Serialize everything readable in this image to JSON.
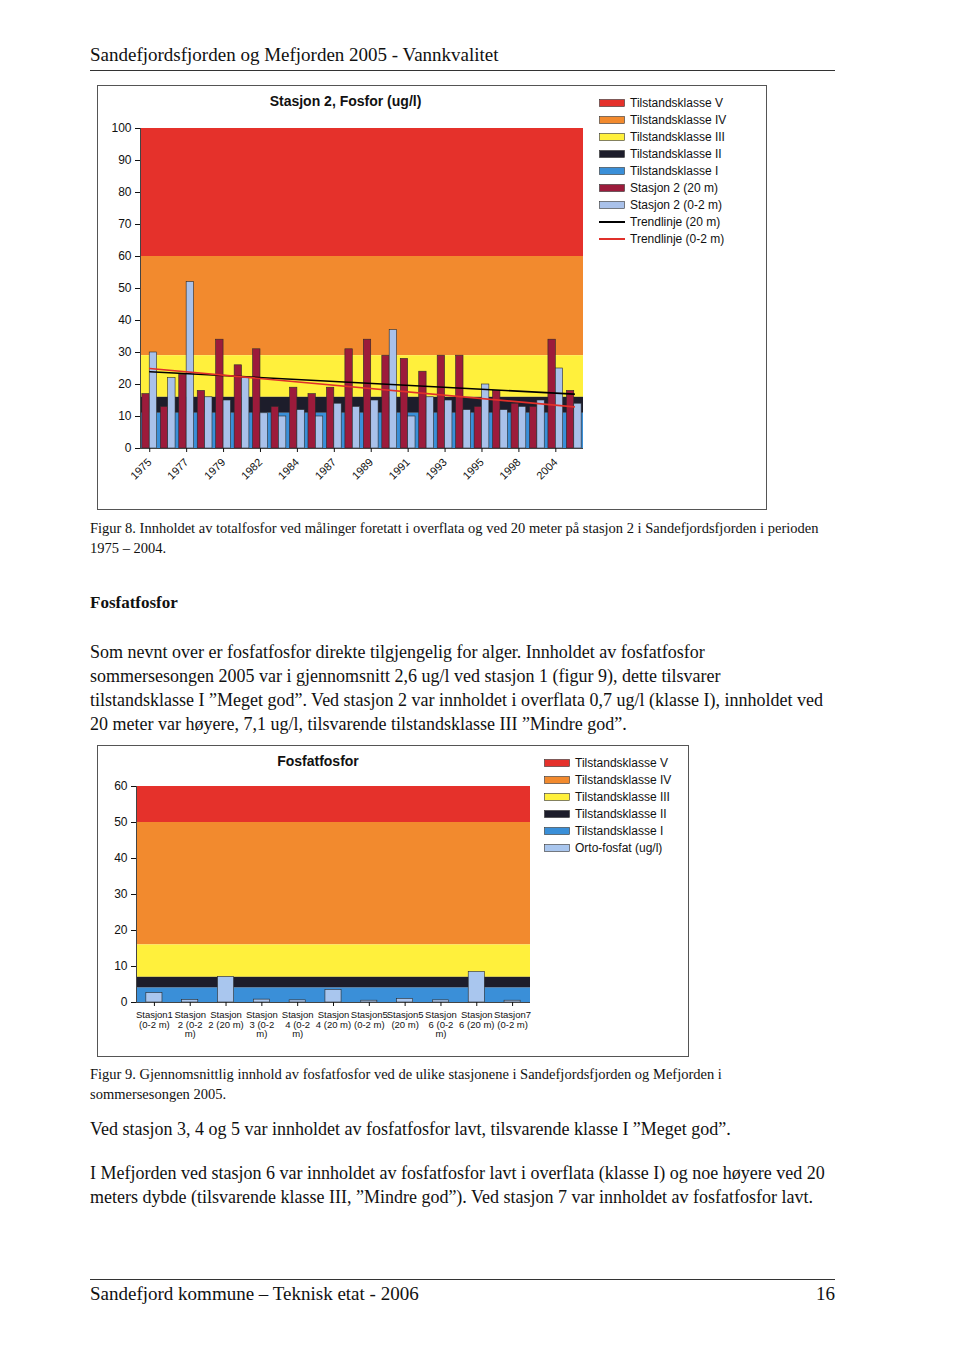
{
  "header": "Sandefjordsfjorden og Mefjorden 2005 - Vannkvalitet",
  "chart_data": [
    {
      "type": "bar",
      "title": "Stasjon 2, Fosfor (ug/l)",
      "categories": [
        "1975",
        null,
        "1977",
        null,
        "1979",
        null,
        "1982",
        null,
        "1984",
        null,
        "1987",
        null,
        "1989",
        null,
        "1991",
        null,
        "1993",
        null,
        "1995",
        null,
        "1998",
        null,
        "2004",
        null
      ],
      "series": [
        {
          "name": "Stasjon 2 (20 m)",
          "color": "#9c1b3b",
          "values": [
            17,
            13,
            23,
            18,
            34,
            26,
            31,
            13,
            19,
            17,
            19,
            31,
            34,
            29,
            28,
            24,
            29,
            29,
            13,
            18,
            14,
            13,
            34,
            18
          ]
        },
        {
          "name": "Stasjon 2  (0-2 m)",
          "color": "#a9c1ea",
          "values": [
            30,
            22,
            52,
            16,
            15,
            22,
            11,
            10,
            12,
            10,
            14,
            13,
            15,
            37,
            10,
            16,
            15,
            12,
            20,
            12,
            13,
            15,
            25,
            14
          ]
        }
      ],
      "trend_lines": [
        {
          "name": "Trendlinje (20 m)",
          "color": "#000000",
          "start": 24,
          "end": 17
        },
        {
          "name": "Trendlinje (0-2 m)",
          "color": "#e0302a",
          "start": 25,
          "end": 13
        }
      ],
      "classes": [
        {
          "name": "Tilstandsklasse V",
          "color": "#e5312b",
          "from": 60,
          "to": 100
        },
        {
          "name": "Tilstandsklasse IV",
          "color": "#f28a2e",
          "from": 29,
          "to": 60
        },
        {
          "name": "Tilstandsklasse III",
          "color": "#fff03c",
          "from": 16,
          "to": 29
        },
        {
          "name": "Tilstandsklasse II",
          "color": "#1d1d2b",
          "from": 11,
          "to": 16
        },
        {
          "name": "Tilstandsklasse I",
          "color": "#3a8fd8",
          "from": 0,
          "to": 11
        }
      ],
      "ylim": [
        0,
        100
      ],
      "yticks": [
        0,
        10,
        20,
        30,
        40,
        50,
        60,
        70,
        80,
        90,
        100
      ],
      "legend": "right"
    },
    {
      "type": "bar",
      "title": "Fosfatfosfor",
      "categories": [
        "Stasjon1 (0-2 m)",
        "Stasjon 2 (0-2 m)",
        "Stasjon 2 (20 m)",
        "Stasjon 3 (0-2 m)",
        "Stasjon 4 (0-2 m)",
        "Stasjon 4 (20 m)",
        "Stasjon5 (0-2 m)",
        "Stasjon5 (20 m)",
        "Stasjon 6 (0-2 m)",
        "Stasjon 6 (20 m)",
        "Stasjon7 (0-2 m)"
      ],
      "series": [
        {
          "name": "Orto-fosfat (ug/l)",
          "color": "#a9c6ee",
          "values": [
            2.6,
            0.7,
            7.1,
            0.8,
            0.6,
            3.5,
            0.5,
            1.0,
            0.6,
            8.5,
            0.5
          ]
        }
      ],
      "classes": [
        {
          "name": "Tilstandsklasse V",
          "color": "#e5312b",
          "from": 50,
          "to": 60
        },
        {
          "name": "Tilstandsklasse IV",
          "color": "#f28a2e",
          "from": 16,
          "to": 50
        },
        {
          "name": "Tilstandsklasse III",
          "color": "#fff03c",
          "from": 7,
          "to": 16
        },
        {
          "name": "Tilstandsklasse II",
          "color": "#1d1d2b",
          "from": 4,
          "to": 7
        },
        {
          "name": "Tilstandsklasse I",
          "color": "#3a8fd8",
          "from": 0,
          "to": 4
        }
      ],
      "ylim": [
        0,
        60
      ],
      "yticks": [
        0,
        10,
        20,
        30,
        40,
        50,
        60
      ],
      "legend": "right"
    }
  ],
  "captions": [
    "Figur 8. Innholdet av totalfosfor ved målinger foretatt i overflata og ved 20 meter på stasjon 2 i Sandefjordsfjorden i perioden 1975 – 2004.",
    "Figur 9. Gjennomsnittlig innhold av fosfatfosfor ved de ulike stasjonene i Sandefjordsfjorden og Mefjorden i sommersesongen 2005."
  ],
  "section_title": "Fosfatfosfor",
  "paragraphs_before_figure_9": [
    "Som nevnt over er fosfatfosfor direkte tilgjengelig for alger. Innholdet av fosfatfosfor sommersesongen 2005 var i gjennomsnitt 2,6 ug/l ved stasjon 1 (figur 9), dette tilsvarer tilstandsklasse I ”Meget god”. Ved stasjon 2 var innholdet i overflata 0,7 ug/l (klasse I), innholdet ved 20 meter var høyere, 7,1 ug/l, tilsvarende tilstandsklasse III ”Mindre god”."
  ],
  "paragraphs_after_figure_9": [
    "Ved stasjon 3, 4 og 5 var innholdet av fosfatfosfor lavt, tilsvarende klasse I ”Meget god”.",
    "I Mefjorden ved stasjon 6 var innholdet av fosfatfosfor lavt i overflata (klasse I) og noe høyere ved 20 meters dybde (tilsvarende klasse III, ”Mindre god”). Ved stasjon 7 var innholdet av fosfatfosfor lavt."
  ],
  "footer": {
    "left": "Sandefjord kommune – Teknisk etat - 2006",
    "page": "16"
  }
}
